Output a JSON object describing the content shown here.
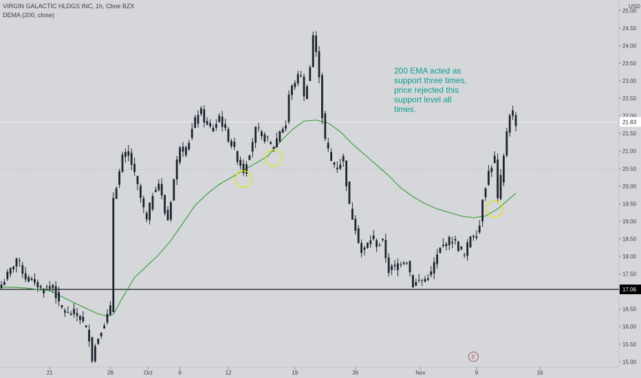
{
  "header": {
    "symbol_line": "VIRGIN GALACTIC HLDGS INC, 1h, Cboe BZX",
    "indicator_line": "DEMA (200, close)"
  },
  "annotation": {
    "lines": [
      "200 EMA acted as",
      "support three times,",
      "price rejected this",
      "support level all",
      "times."
    ]
  },
  "chart_data": {
    "type": "candlestick",
    "currency": "USD",
    "timeframe": "1h",
    "ylim": [
      14.85,
      25.3
    ],
    "y_ticks": [
      "15.00",
      "15.50",
      "16.00",
      "16.50",
      "17.00",
      "17.50",
      "18.00",
      "18.50",
      "19.00",
      "19.50",
      "20.00",
      "20.50",
      "21.00",
      "21.50",
      "22.00",
      "22.50",
      "23.00",
      "23.50",
      "24.00",
      "24.50",
      "25.00"
    ],
    "x_ticks": [
      "21",
      "28",
      "Oct",
      "6",
      "12",
      "19",
      "26",
      "Nov",
      "9",
      "16"
    ],
    "x_tick_pos": [
      16,
      36,
      48.5,
      59,
      75,
      97,
      117,
      138.5,
      157,
      178
    ],
    "price_line": {
      "value": 21.83,
      "label": "21.83",
      "color": "#ffffff"
    },
    "horizontal_levels": [
      {
        "value": 17.06,
        "label": "17.06",
        "color": "#000000"
      },
      {
        "value": 20.48,
        "color": "#9aa0ab"
      }
    ],
    "close_path": [
      [
        0,
        17.2
      ],
      [
        3,
        17.6
      ],
      [
        5,
        17.95
      ],
      [
        8,
        17.4
      ],
      [
        11,
        17.25
      ],
      [
        14,
        17.05
      ],
      [
        17,
        17.2
      ],
      [
        19,
        16.6
      ],
      [
        22,
        16.35
      ],
      [
        25,
        16.4
      ],
      [
        27,
        16.1
      ],
      [
        29,
        15.7
      ],
      [
        30,
        15.1
      ],
      [
        31,
        15.45
      ],
      [
        33,
        15.95
      ],
      [
        35,
        16.3
      ],
      [
        36,
        16.5
      ],
      [
        37,
        19.7
      ],
      [
        39,
        20.4
      ],
      [
        40,
        20.8
      ],
      [
        42,
        20.95
      ],
      [
        44,
        20.3
      ],
      [
        46,
        19.65
      ],
      [
        48,
        19.0
      ],
      [
        50,
        19.8
      ],
      [
        52,
        20.1
      ],
      [
        54,
        19.25
      ],
      [
        55,
        19.05
      ],
      [
        57,
        20.2
      ],
      [
        59,
        21.2
      ],
      [
        61,
        21.0
      ],
      [
        63,
        21.6
      ],
      [
        65,
        22.1
      ],
      [
        66,
        22.1
      ],
      [
        68,
        21.7
      ],
      [
        70,
        21.6
      ],
      [
        72,
        22.0
      ],
      [
        74,
        21.55
      ],
      [
        76,
        21.2
      ],
      [
        78,
        20.8
      ],
      [
        80,
        20.45
      ],
      [
        82,
        21.0
      ],
      [
        84,
        21.6
      ],
      [
        86,
        21.45
      ],
      [
        88,
        21.3
      ],
      [
        90,
        21.1
      ],
      [
        92,
        21.6
      ],
      [
        94,
        21.75
      ],
      [
        95,
        22.6
      ],
      [
        97,
        23.0
      ],
      [
        99,
        23.2
      ],
      [
        100,
        22.5
      ],
      [
        102,
        23.4
      ],
      [
        103,
        24.3
      ],
      [
        105,
        23.2
      ],
      [
        106,
        22.0
      ],
      [
        107,
        21.3
      ],
      [
        109,
        20.7
      ],
      [
        111,
        20.55
      ],
      [
        113,
        20.8
      ],
      [
        115,
        19.4
      ],
      [
        117,
        18.85
      ],
      [
        119,
        18.1
      ],
      [
        120,
        18.2
      ],
      [
        122,
        18.5
      ],
      [
        124,
        18.35
      ],
      [
        126,
        18.4
      ],
      [
        128,
        17.6
      ],
      [
        130,
        17.7
      ],
      [
        132,
        17.85
      ],
      [
        134,
        17.9
      ],
      [
        136,
        17.2
      ],
      [
        138,
        17.3
      ],
      [
        140,
        17.35
      ],
      [
        142,
        17.5
      ],
      [
        143,
        17.8
      ],
      [
        145,
        18.2
      ],
      [
        147,
        18.4
      ],
      [
        149,
        18.5
      ],
      [
        151,
        18.25
      ],
      [
        153,
        18.0
      ],
      [
        155,
        18.6
      ],
      [
        157,
        18.65
      ],
      [
        158,
        18.9
      ],
      [
        159,
        19.7
      ],
      [
        161,
        20.4
      ],
      [
        163,
        20.8
      ],
      [
        164,
        19.6
      ],
      [
        166,
        20.8
      ],
      [
        167,
        21.6
      ],
      [
        168,
        22.1
      ],
      [
        170,
        21.8
      ]
    ],
    "dema_path": [
      [
        0,
        17.12
      ],
      [
        4,
        17.12
      ],
      [
        8,
        17.1
      ],
      [
        12,
        17.06
      ],
      [
        16,
        17.02
      ],
      [
        20,
        16.85
      ],
      [
        24,
        16.68
      ],
      [
        28,
        16.52
      ],
      [
        32,
        16.36
      ],
      [
        35,
        16.3
      ],
      [
        37,
        16.35
      ],
      [
        40,
        16.82
      ],
      [
        44,
        17.4
      ],
      [
        48,
        17.72
      ],
      [
        52,
        18.05
      ],
      [
        56,
        18.45
      ],
      [
        60,
        18.95
      ],
      [
        64,
        19.45
      ],
      [
        68,
        19.78
      ],
      [
        72,
        20.05
      ],
      [
        76,
        20.25
      ],
      [
        80,
        20.45
      ],
      [
        84,
        20.65
      ],
      [
        88,
        20.85
      ],
      [
        92,
        21.25
      ],
      [
        96,
        21.6
      ],
      [
        100,
        21.85
      ],
      [
        104,
        21.88
      ],
      [
        108,
        21.8
      ],
      [
        112,
        21.55
      ],
      [
        116,
        21.2
      ],
      [
        120,
        20.9
      ],
      [
        124,
        20.6
      ],
      [
        128,
        20.3
      ],
      [
        132,
        19.95
      ],
      [
        136,
        19.7
      ],
      [
        140,
        19.5
      ],
      [
        144,
        19.35
      ],
      [
        148,
        19.25
      ],
      [
        152,
        19.15
      ],
      [
        156,
        19.1
      ],
      [
        160,
        19.15
      ],
      [
        164,
        19.35
      ],
      [
        166,
        19.5
      ],
      [
        168,
        19.65
      ],
      [
        170,
        19.8
      ]
    ],
    "support_circles": [
      {
        "index": 80,
        "value": 20.2,
        "color": "#e6e600"
      },
      {
        "index": 90,
        "value": 20.8,
        "color": "#e6e600"
      },
      {
        "index": 163,
        "value": 19.35,
        "color": "#e6e600"
      }
    ],
    "earnings_marker": {
      "index": 156,
      "label": "E"
    }
  }
}
